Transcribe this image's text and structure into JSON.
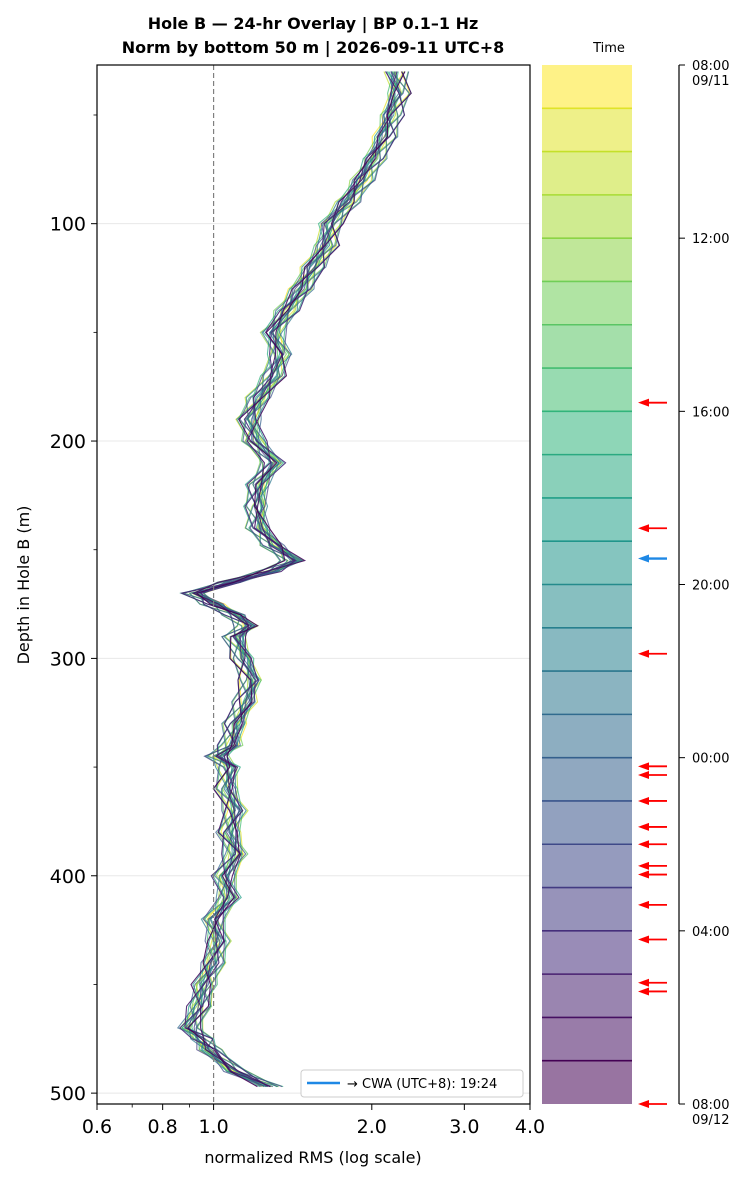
{
  "chart_data": {
    "type": "line",
    "title": [
      "Hole B — 24-hr Overlay  |  BP 0.1–1 Hz",
      "Norm by bottom 50 m  |  2026-09-11 UTC+8"
    ],
    "xlabel": "normalized RMS  (log scale)",
    "ylabel": "Depth in Hole B (m)",
    "xscale": "log",
    "xlim": [
      0.6,
      4.0
    ],
    "ylim": [
      505,
      27
    ],
    "xticks": [
      "0.6",
      "0.8",
      "1.0",
      "2.0",
      "3.0",
      "4.0"
    ],
    "xtick_values": [
      0.6,
      0.8,
      1.0,
      2.0,
      3.0,
      4.0
    ],
    "yticks": [
      "100",
      "200",
      "300",
      "400",
      "500"
    ],
    "ytick_values": [
      100,
      200,
      300,
      400,
      500
    ],
    "reference_line": {
      "x": 1.0,
      "style": "dashed",
      "color": "#808080"
    },
    "grid": "horizontal",
    "depth_profile": [
      [
        30,
        2.22
      ],
      [
        40,
        2.25
      ],
      [
        50,
        2.18
      ],
      [
        60,
        2.12
      ],
      [
        70,
        2.02
      ],
      [
        80,
        1.92
      ],
      [
        90,
        1.8
      ],
      [
        100,
        1.67
      ],
      [
        110,
        1.64
      ],
      [
        120,
        1.55
      ],
      [
        130,
        1.47
      ],
      [
        140,
        1.38
      ],
      [
        150,
        1.3
      ],
      [
        160,
        1.34
      ],
      [
        170,
        1.3
      ],
      [
        180,
        1.22
      ],
      [
        190,
        1.17
      ],
      [
        200,
        1.2
      ],
      [
        210,
        1.3
      ],
      [
        220,
        1.22
      ],
      [
        230,
        1.21
      ],
      [
        240,
        1.22
      ],
      [
        248,
        1.3
      ],
      [
        255,
        1.42
      ],
      [
        260,
        1.28
      ],
      [
        265,
        1.08
      ],
      [
        270,
        0.92
      ],
      [
        275,
        1.0
      ],
      [
        280,
        1.1
      ],
      [
        285,
        1.16
      ],
      [
        290,
        1.1
      ],
      [
        300,
        1.14
      ],
      [
        310,
        1.18
      ],
      [
        320,
        1.15
      ],
      [
        330,
        1.1
      ],
      [
        340,
        1.08
      ],
      [
        345,
        1.02
      ],
      [
        350,
        1.07
      ],
      [
        360,
        1.06
      ],
      [
        370,
        1.1
      ],
      [
        380,
        1.07
      ],
      [
        390,
        1.1
      ],
      [
        400,
        1.05
      ],
      [
        410,
        1.07
      ],
      [
        420,
        1.0
      ],
      [
        430,
        1.02
      ],
      [
        440,
        1.0
      ],
      [
        450,
        0.96
      ],
      [
        460,
        0.94
      ],
      [
        470,
        0.9
      ],
      [
        475,
        0.95
      ],
      [
        480,
        0.98
      ],
      [
        490,
        1.1
      ],
      [
        497,
        1.28
      ]
    ],
    "colorbar": {
      "label": "Time",
      "colormap": "viridis (reversed, alpha 0.55)",
      "ticks": [
        "08:00",
        "12:00",
        "16:00",
        "20:00",
        "00:00",
        "04:00",
        "08:00"
      ],
      "tick_dates": [
        "09/11",
        "",
        "",
        "",
        "",
        "",
        "09/12"
      ],
      "tick_hours": [
        0,
        4,
        8,
        12,
        16,
        20,
        24
      ],
      "bands": 24
    },
    "event_arrows": {
      "color": "#ff0000",
      "hours": [
        7.8,
        10.7,
        13.6,
        16.2,
        16.4,
        17.0,
        17.6,
        18.0,
        18.5,
        18.7,
        19.4,
        20.2,
        21.2,
        21.4,
        24.0
      ]
    },
    "marker_arrow": {
      "hour": 11.4,
      "color": "#1e88e5"
    },
    "legend": {
      "label": "→ CWA (UTC+8): 19:24",
      "color": "#1e88e5",
      "location": "lower-right"
    }
  }
}
